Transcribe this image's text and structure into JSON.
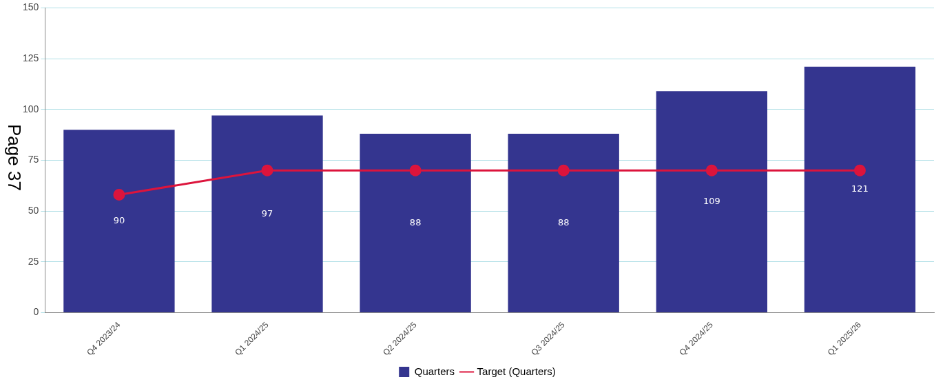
{
  "chart_data": {
    "type": "bar",
    "categories": [
      "Q4 2023/24",
      "Q1 2024/25",
      "Q2 2024/25",
      "Q3 2024/25",
      "Q4 2024/25",
      "Q1 2025/26"
    ],
    "series": [
      {
        "name": "Quarters",
        "color": "#34358f",
        "values": [
          90,
          97,
          88,
          88,
          109,
          121
        ],
        "value_labels": [
          "90",
          "97",
          "88",
          "88",
          "109",
          "121"
        ]
      },
      {
        "name": "Target (Quarters)",
        "type": "line",
        "color": "#dc143c",
        "values": [
          58,
          70,
          70,
          70,
          70,
          70
        ]
      }
    ],
    "ylim": [
      0,
      150
    ],
    "yticks": [
      0,
      25,
      50,
      75,
      100,
      125,
      150
    ],
    "grid": "y",
    "legend": "bottom",
    "marker": "circle",
    "annotations": [
      "Page 37"
    ]
  }
}
